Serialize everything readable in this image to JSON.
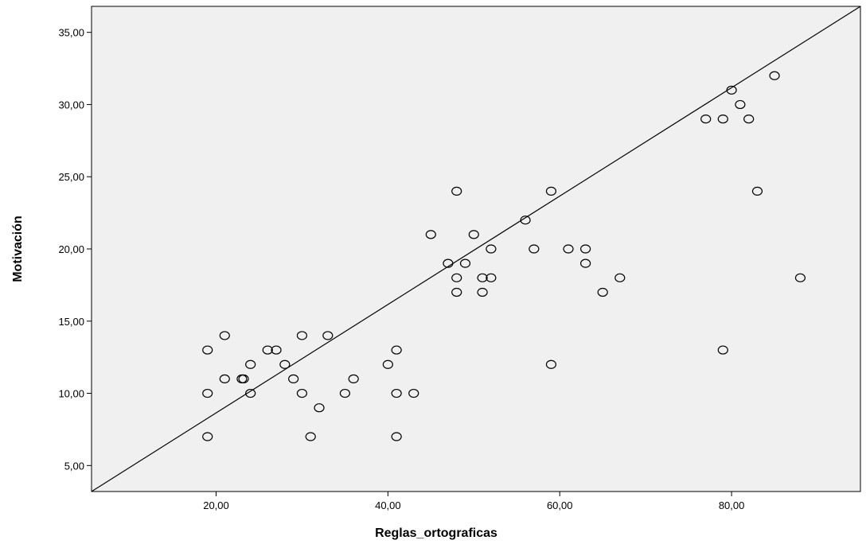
{
  "chart_data": {
    "type": "scatter",
    "title": "",
    "xlabel": "Reglas_ortograficas",
    "ylabel": "Motivación",
    "xlim": [
      5.5,
      95
    ],
    "ylim": [
      3.2,
      36.8
    ],
    "x_ticks": [
      20,
      40,
      60,
      80
    ],
    "x_tick_labels": [
      "20,00",
      "40,00",
      "60,00",
      "80,00"
    ],
    "y_ticks": [
      5,
      10,
      15,
      20,
      25,
      30,
      35
    ],
    "y_tick_labels": [
      "5,00",
      "10,00",
      "15,00",
      "20,00",
      "25,00",
      "30,00",
      "35,00"
    ],
    "grid": false,
    "plot_background": "#f0f0f0",
    "marker": "hollow-circle",
    "fit_line": {
      "points": [
        [
          5.5,
          3.2
        ],
        [
          95,
          36.8
        ]
      ]
    },
    "series": [
      {
        "points": [
          [
            19,
            13
          ],
          [
            19,
            10
          ],
          [
            19,
            7
          ],
          [
            21,
            14
          ],
          [
            21,
            11
          ],
          [
            23,
            11
          ],
          [
            23.2,
            11
          ],
          [
            24,
            12
          ],
          [
            24,
            10
          ],
          [
            26,
            13
          ],
          [
            27,
            13
          ],
          [
            28,
            12
          ],
          [
            29,
            11
          ],
          [
            30,
            14
          ],
          [
            30,
            10
          ],
          [
            31,
            7
          ],
          [
            32,
            9
          ],
          [
            33,
            14
          ],
          [
            35,
            10
          ],
          [
            36,
            11
          ],
          [
            40,
            12
          ],
          [
            41,
            13
          ],
          [
            41,
            10
          ],
          [
            41,
            7
          ],
          [
            43,
            10
          ],
          [
            45,
            21
          ],
          [
            47,
            19
          ],
          [
            48,
            24
          ],
          [
            48,
            18
          ],
          [
            48,
            17
          ],
          [
            49,
            19
          ],
          [
            50,
            21
          ],
          [
            51,
            18
          ],
          [
            51,
            17
          ],
          [
            52,
            20
          ],
          [
            52,
            18
          ],
          [
            56,
            22
          ],
          [
            57,
            20
          ],
          [
            59,
            24
          ],
          [
            59,
            12
          ],
          [
            61,
            20
          ],
          [
            63,
            20
          ],
          [
            63,
            19
          ],
          [
            65,
            17
          ],
          [
            67,
            18
          ],
          [
            77,
            29
          ],
          [
            79,
            29
          ],
          [
            79,
            13
          ],
          [
            80,
            31
          ],
          [
            81,
            30
          ],
          [
            82,
            29
          ],
          [
            83,
            24
          ],
          [
            85,
            32
          ],
          [
            88,
            18
          ]
        ]
      }
    ]
  }
}
